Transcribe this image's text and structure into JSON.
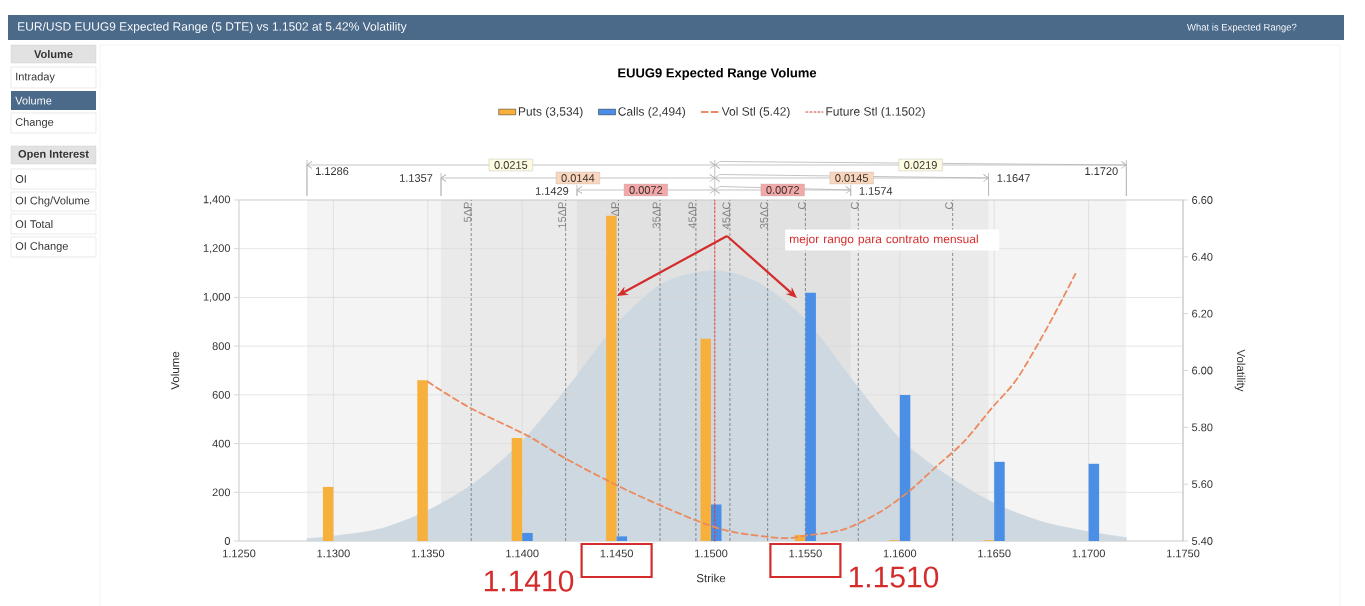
{
  "chart_data": {
    "type": "bar",
    "title": "EUR/USD EUUG9 Expected Range (5 DTE) vs 1.1502 at 5.42% Volatility",
    "subtitle": "EUUG9 Expected Range Volume",
    "xlabel": "Strike",
    "ylabel": "Volume",
    "y2label": "Volatility",
    "xlim": [
      1.125,
      1.175
    ],
    "xticks": [
      {
        "value": 1.125,
        "label": "1.1250"
      },
      {
        "value": 1.13,
        "label": "1.1300"
      },
      {
        "value": 1.135,
        "label": "1.1350"
      },
      {
        "value": 1.14,
        "label": "1.1400"
      },
      {
        "value": 1.145,
        "label": "1.1450"
      },
      {
        "value": 1.15,
        "label": "1.1500"
      },
      {
        "value": 1.155,
        "label": "1.1550"
      },
      {
        "value": 1.16,
        "label": "1.1600"
      },
      {
        "value": 1.165,
        "label": "1.1650"
      },
      {
        "value": 1.17,
        "label": "1.1700"
      },
      {
        "value": 1.175,
        "label": "1.1750"
      }
    ],
    "ylim": [
      0,
      1400
    ],
    "yticks": [
      0,
      200,
      400,
      600,
      800,
      {
        "value": 1000,
        "label": "1,000"
      },
      {
        "value": 1200,
        "label": "1,200"
      },
      {
        "value": 1400,
        "label": "1,400"
      }
    ],
    "y2lim": [
      5.4,
      6.6
    ],
    "y2ticks": [
      {
        "value": 5.4,
        "label": "5.40"
      },
      {
        "value": 5.6,
        "label": "5.60"
      },
      {
        "value": 5.8,
        "label": "5.80"
      },
      {
        "value": 6.0,
        "label": "6.00"
      },
      {
        "value": 6.2,
        "label": "6.20"
      },
      {
        "value": 6.4,
        "label": "6.40"
      },
      {
        "value": 6.6,
        "label": "6.60"
      }
    ],
    "grid": true,
    "legend": "top",
    "series": [
      {
        "type": "area",
        "color": "#cdd8e0",
        "x": [
          1.1286,
          1.13,
          1.1325,
          1.135,
          1.1375,
          1.14,
          1.1425,
          1.145,
          1.1475,
          1.1502,
          1.1525,
          1.155,
          1.1575,
          1.16,
          1.1625,
          1.165,
          1.1675,
          1.17,
          1.172
        ],
        "values": [
          10,
          20,
          50,
          125,
          240,
          410,
          640,
          890,
          1060,
          1110,
          1060,
          910,
          660,
          420,
          270,
          155,
          80,
          38,
          14
        ]
      },
      {
        "name": "Puts (3,534)",
        "color": "#f7b03c",
        "x": [
          1.13,
          1.135,
          1.14,
          1.145,
          1.15,
          1.155,
          1.16,
          1.165
        ],
        "values": [
          222,
          660,
          423,
          1335,
          830,
          25,
          3,
          3
        ]
      },
      {
        "name": "Calls (2,494)",
        "color": "#4a8ee6",
        "x": [
          1.14,
          1.145,
          1.15,
          1.155,
          1.16,
          1.165,
          1.17
        ],
        "values": [
          33,
          19,
          150,
          1019,
          599,
          325,
          317
        ]
      },
      {
        "name": "Vol Stl (5.42)",
        "type": "line",
        "axis": "y2",
        "line_style": "dashed",
        "color": "#ec8a5e",
        "x": [
          1.135,
          1.1372,
          1.1403,
          1.1423,
          1.1452,
          1.1475,
          1.1497,
          1.1513,
          1.1538,
          1.1551,
          1.157,
          1.1589,
          1.1604,
          1.1619,
          1.1634,
          1.1649,
          1.1662,
          1.1678,
          1.1693
        ],
        "values": [
          5.96,
          5.87,
          5.77,
          5.69,
          5.59,
          5.52,
          5.46,
          5.43,
          5.41,
          5.42,
          5.44,
          5.5,
          5.57,
          5.66,
          5.75,
          5.87,
          5.97,
          6.15,
          6.34
        ]
      },
      {
        "name": "Future Stl (1.1502)",
        "type": "line",
        "line_style": "dotted",
        "color": "#e03a3a",
        "x": [
          1.1502,
          1.1502
        ],
        "values": [
          0,
          1400
        ]
      }
    ],
    "ref_lines": [
      {
        "axis": "x",
        "value": 1.1373,
        "label": "5ΔP",
        "line_style": "dashed",
        "color": "#666666"
      },
      {
        "axis": "x",
        "value": 1.1423,
        "label": "15ΔP",
        "line_style": "dashed",
        "color": "#666666"
      },
      {
        "axis": "x",
        "value": 1.1451,
        "label": "ΔP",
        "line_style": "dashed",
        "color": "#666666"
      },
      {
        "axis": "x",
        "value": 1.1473,
        "label": "35ΔP",
        "line_style": "dashed",
        "color": "#666666"
      },
      {
        "axis": "x",
        "value": 1.1492,
        "label": "45ΔP",
        "line_style": "dashed",
        "color": "#666666"
      },
      {
        "axis": "x",
        "value": 1.151,
        "label": "45ΔC",
        "line_style": "dashed",
        "color": "#666666"
      },
      {
        "axis": "x",
        "value": 1.153,
        "label": "35ΔC",
        "line_style": "dashed",
        "color": "#666666"
      },
      {
        "axis": "x",
        "value": 1.155,
        "label": "C",
        "line_style": "dashed",
        "color": "#666666"
      },
      {
        "axis": "x",
        "value": 1.1578,
        "label": "C",
        "line_style": "dashed",
        "color": "#666666"
      },
      {
        "axis": "x",
        "value": 1.1628,
        "label": "C",
        "line_style": "dashed",
        "color": "#666666"
      }
    ],
    "bands": [
      {
        "axis": "x",
        "from": 1.1286,
        "to": 1.1502,
        "label": "0.0215",
        "color": "#f4f4f4"
      },
      {
        "axis": "x",
        "from": 1.1502,
        "to": 1.172,
        "label": "0.0219",
        "color": "#f4f4f4"
      },
      {
        "axis": "x",
        "from": 1.1357,
        "to": 1.1502,
        "label": "0.0144",
        "color": "#f4f4f4"
      },
      {
        "axis": "x",
        "from": 1.1502,
        "to": 1.1647,
        "label": "0.0145",
        "color": "#f4f4f4"
      },
      {
        "axis": "x",
        "from": 1.1429,
        "to": 1.1502,
        "label": "0.0072",
        "color": "#f4f4f4"
      },
      {
        "axis": "x",
        "from": 1.1502,
        "to": 1.1574,
        "label": "0.0072",
        "color": "#f4f4f4"
      }
    ],
    "annotations": [
      "What is Expected Range?",
      "Volume",
      "Intraday",
      "Volume",
      "Change",
      "Open Interest",
      "OI",
      "OI Chg/Volume",
      "OI Total",
      "OI Change",
      "1.1286",
      "1.1357",
      "1.1429",
      "1.1574",
      "1.1647",
      "1.1720",
      "mejor rango para contrato mensual",
      "1.1410",
      "1.1510"
    ]
  }
}
